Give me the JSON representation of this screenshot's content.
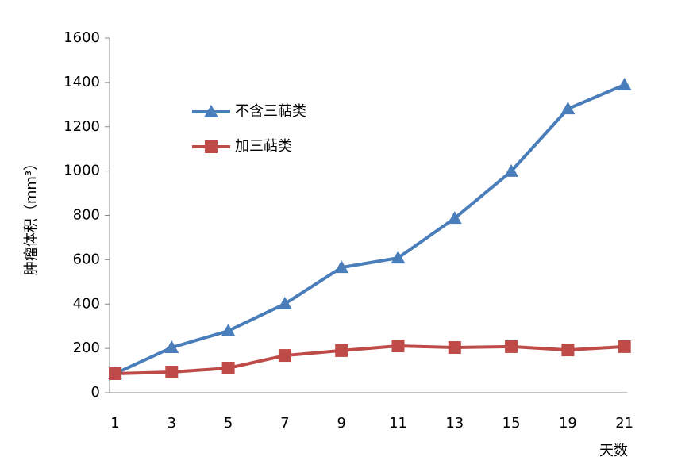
{
  "chart_data": {
    "type": "line",
    "y_label": "肿瘤体积（mm³）",
    "x_label": "天数",
    "categories": [
      "1",
      "3",
      "5",
      "7",
      "9",
      "11",
      "13",
      "15",
      "19",
      "21"
    ],
    "series": [
      {
        "name": "不含三萜类",
        "color": "#4a7ebb",
        "marker": "triangle",
        "values": [
          86,
          204,
          279,
          401,
          565,
          608,
          787,
          999,
          1281,
          1389
        ]
      },
      {
        "name": "加三萜类",
        "color": "#be4b48",
        "marker": "square",
        "values": [
          86,
          93,
          111,
          168,
          190,
          211,
          204,
          208,
          193,
          208
        ]
      }
    ],
    "ylim": [
      0,
      1600
    ],
    "yticks": [
      0,
      200,
      400,
      600,
      800,
      1000,
      1200,
      1400,
      1600
    ],
    "grid": false
  }
}
